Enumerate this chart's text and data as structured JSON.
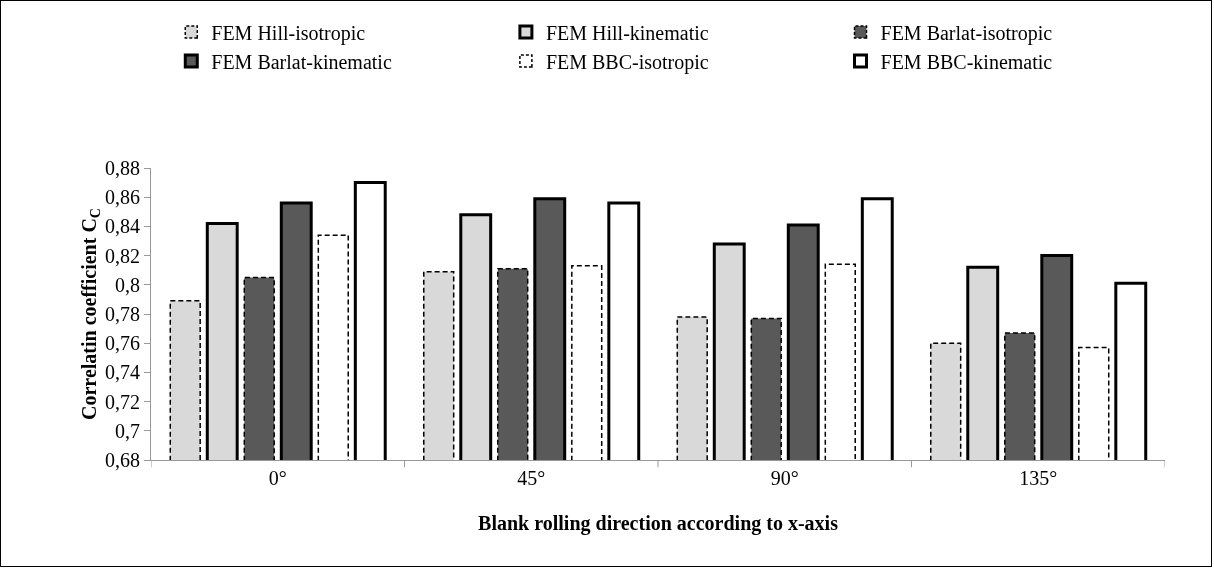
{
  "chart_data": {
    "type": "bar",
    "xlabel": "Blank rolling direction according to x-axis",
    "ylabel": "Correlatin coefficient C$_{C}$",
    "categories": [
      "0°",
      "45°",
      "90°",
      "135°"
    ],
    "series": [
      {
        "name": "FEM Hill-isotropic",
        "color": "#d9d9d9",
        "line_style": "dashed",
        "values": [
          0.789,
          0.809,
          0.778,
          0.76
        ]
      },
      {
        "name": "FEM Hill-kinematic",
        "color": "#d9d9d9",
        "line_style": "solid",
        "values": [
          0.842,
          0.848,
          0.828,
          0.812
        ]
      },
      {
        "name": "FEM Barlat-isotropic",
        "color": "#595959",
        "line_style": "dashed",
        "values": [
          0.805,
          0.811,
          0.777,
          0.767
        ]
      },
      {
        "name": "FEM Barlat-kinematic",
        "color": "#595959",
        "line_style": "solid",
        "values": [
          0.856,
          0.859,
          0.841,
          0.82
        ]
      },
      {
        "name": "FEM BBC-isotropic",
        "color": "#ffffff",
        "line_style": "dashed",
        "values": [
          0.834,
          0.813,
          0.814,
          0.757
        ]
      },
      {
        "name": "FEM BBC-kinematic",
        "color": "#ffffff",
        "line_style": "solid",
        "values": [
          0.87,
          0.856,
          0.859,
          0.801
        ]
      }
    ],
    "ylim": [
      0.68,
      0.88
    ],
    "yticks": [
      {
        "value": 0.68,
        "label": "0,68"
      },
      {
        "value": 0.7,
        "label": "0,7"
      },
      {
        "value": 0.72,
        "label": "0,72"
      },
      {
        "value": 0.74,
        "label": "0,74"
      },
      {
        "value": 0.76,
        "label": "0,76"
      },
      {
        "value": 0.78,
        "label": "0,78"
      },
      {
        "value": 0.8,
        "label": "0,8"
      },
      {
        "value": 0.82,
        "label": "0,82"
      },
      {
        "value": 0.84,
        "label": "0,84"
      },
      {
        "value": 0.86,
        "label": "0,86"
      },
      {
        "value": 0.88,
        "label": "0,88"
      }
    ],
    "grid": false,
    "legend": "top"
  }
}
